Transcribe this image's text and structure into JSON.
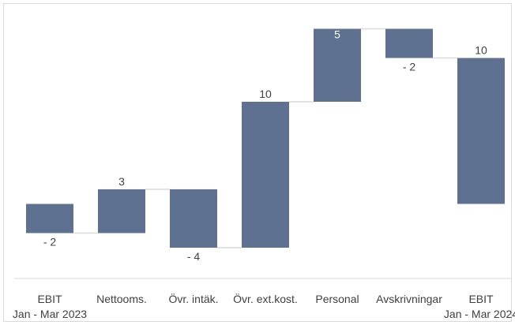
{
  "chart_data": {
    "type": "waterfall",
    "title": "",
    "xlabel": "",
    "ylabel": "",
    "categories": [
      [
        "EBIT",
        "Jan - Mar 2023"
      ],
      [
        "Nettooms."
      ],
      [
        "Övr. intäk."
      ],
      [
        "Övr. ext.kost."
      ],
      [
        "Personal"
      ],
      [
        "Avskrivningar"
      ],
      [
        "EBIT",
        "Jan - Mar 2024"
      ]
    ],
    "values": [
      -2,
      3,
      -4,
      10,
      5,
      -2,
      10
    ],
    "value_labels": [
      "- 2",
      "3",
      "- 4",
      "10",
      "5",
      "- 2",
      "10"
    ],
    "bar_kinds": [
      "total",
      "delta",
      "delta",
      "delta",
      "delta",
      "delta",
      "total"
    ],
    "ylim": [
      -5,
      13
    ],
    "grid": false,
    "legend": "none",
    "colors": {
      "bar": "#5f7190",
      "connector": "#d9d9d9",
      "axis": "#d9d9d9",
      "label": "#404040"
    }
  }
}
